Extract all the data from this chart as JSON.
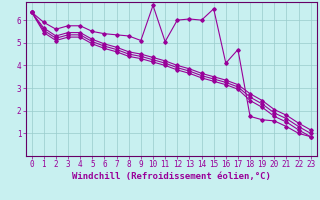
{
  "xlabel": "Windchill (Refroidissement éolien,°C)",
  "bg_color": "#c8f0f0",
  "line_color": "#990099",
  "xlim": [
    -0.5,
    23.5
  ],
  "ylim": [
    0,
    6.8
  ],
  "xticks": [
    0,
    1,
    2,
    3,
    4,
    5,
    6,
    7,
    8,
    9,
    10,
    11,
    12,
    13,
    14,
    15,
    16,
    17,
    18,
    19,
    20,
    21,
    22,
    23
  ],
  "yticks": [
    1,
    2,
    3,
    4,
    5,
    6
  ],
  "line1_x": [
    0,
    1,
    2,
    3,
    4,
    5,
    6,
    7,
    8,
    9,
    10,
    11,
    12,
    13,
    14,
    15,
    16,
    17,
    18,
    19,
    20,
    21,
    22,
    23
  ],
  "line1_y": [
    6.35,
    5.9,
    5.6,
    5.75,
    5.75,
    5.5,
    5.4,
    5.35,
    5.3,
    5.1,
    6.65,
    5.05,
    6.0,
    6.05,
    6.0,
    6.5,
    4.1,
    4.7,
    1.75,
    1.6,
    1.55,
    1.3,
    1.0,
    0.85
  ],
  "line2_x": [
    0,
    1,
    2,
    3,
    4,
    5,
    6,
    7,
    8,
    9,
    10,
    11,
    12,
    13,
    14,
    15,
    16,
    17,
    18,
    19,
    20,
    21,
    22,
    23
  ],
  "line2_y": [
    6.35,
    5.65,
    5.3,
    5.45,
    5.45,
    5.15,
    4.95,
    4.8,
    4.6,
    4.5,
    4.35,
    4.2,
    4.0,
    3.85,
    3.65,
    3.5,
    3.35,
    3.15,
    2.75,
    2.45,
    2.05,
    1.8,
    1.45,
    1.15
  ],
  "line3_x": [
    0,
    1,
    2,
    3,
    4,
    5,
    6,
    7,
    8,
    9,
    10,
    11,
    12,
    13,
    14,
    15,
    16,
    17,
    18,
    19,
    20,
    21,
    22,
    23
  ],
  "line3_y": [
    6.35,
    5.55,
    5.2,
    5.35,
    5.35,
    5.05,
    4.85,
    4.7,
    4.5,
    4.4,
    4.25,
    4.1,
    3.9,
    3.75,
    3.55,
    3.4,
    3.25,
    3.05,
    2.6,
    2.3,
    1.9,
    1.65,
    1.3,
    1.0
  ],
  "line4_x": [
    0,
    1,
    2,
    3,
    4,
    5,
    6,
    7,
    8,
    9,
    10,
    11,
    12,
    13,
    14,
    15,
    16,
    17,
    18,
    19,
    20,
    21,
    22,
    23
  ],
  "line4_y": [
    6.35,
    5.45,
    5.1,
    5.25,
    5.25,
    4.95,
    4.75,
    4.6,
    4.4,
    4.3,
    4.15,
    4.0,
    3.8,
    3.65,
    3.45,
    3.3,
    3.15,
    2.95,
    2.45,
    2.15,
    1.75,
    1.5,
    1.15,
    0.85
  ],
  "grid_color": "#99cccc",
  "tick_color": "#990099",
  "label_color": "#990099",
  "spine_color": "#660066",
  "xlabel_fontsize": 6.5,
  "tick_fontsize": 5.5,
  "linewidth": 0.8,
  "marker": "D",
  "markersize": 1.8
}
